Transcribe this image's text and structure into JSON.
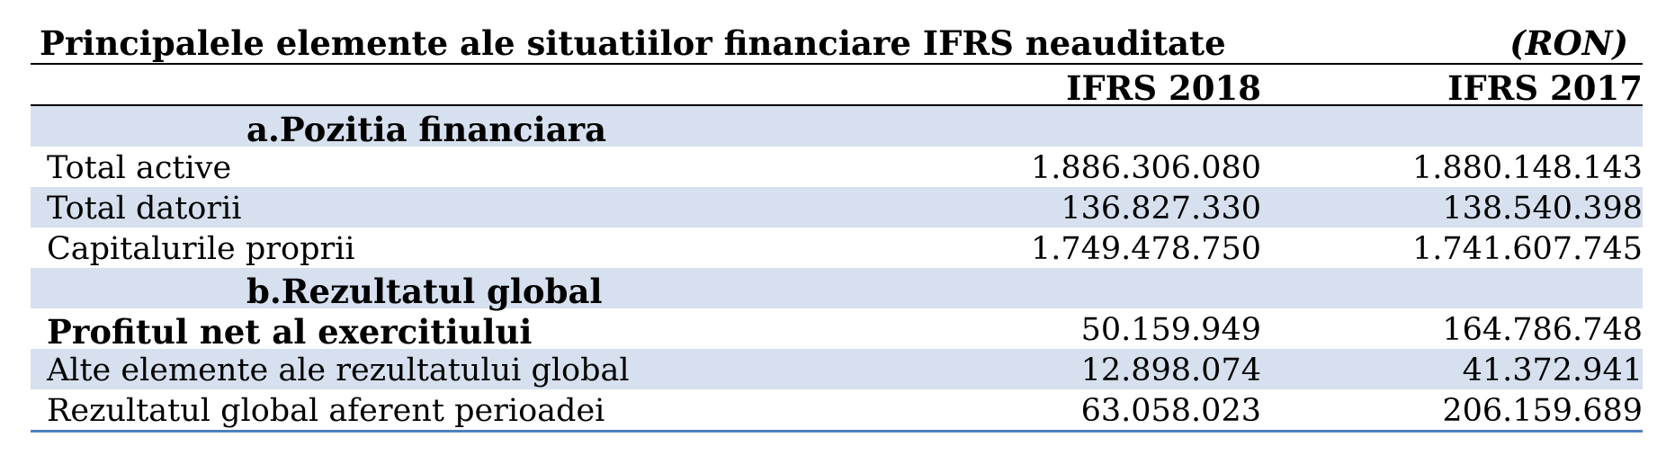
{
  "title": "Principalele elemente ale situatiilor financiare IFRS neauditate",
  "unit": "(RON)",
  "columns": [
    "IFRS 2018",
    "IFRS 2017"
  ],
  "sections": {
    "a": "a.Pozitia financiara",
    "b": "b.Rezultatul global"
  },
  "rows": [
    {
      "label": "Total active",
      "v2018": "1.886.306.080",
      "v2017": "1.880.148.143"
    },
    {
      "label": "Total datorii",
      "v2018": "136.827.330",
      "v2017": "138.540.398"
    },
    {
      "label": "Capitalurile proprii",
      "v2018": "1.749.478.750",
      "v2017": "1.741.607.745"
    },
    {
      "label": "Profitul net al exercitiului",
      "v2018": "50.159.949",
      "v2017": "164.786.748"
    },
    {
      "label": "Alte elemente ale rezultatului global",
      "v2018": "12.898.074",
      "v2017": "41.372.941"
    },
    {
      "label": "Rezultatul global aferent perioadei",
      "v2018": "63.058.023",
      "v2017": "206.159.689"
    }
  ],
  "colors": {
    "row_shade": "#d6e0ee",
    "bottom_rule": "#4f81bd"
  }
}
